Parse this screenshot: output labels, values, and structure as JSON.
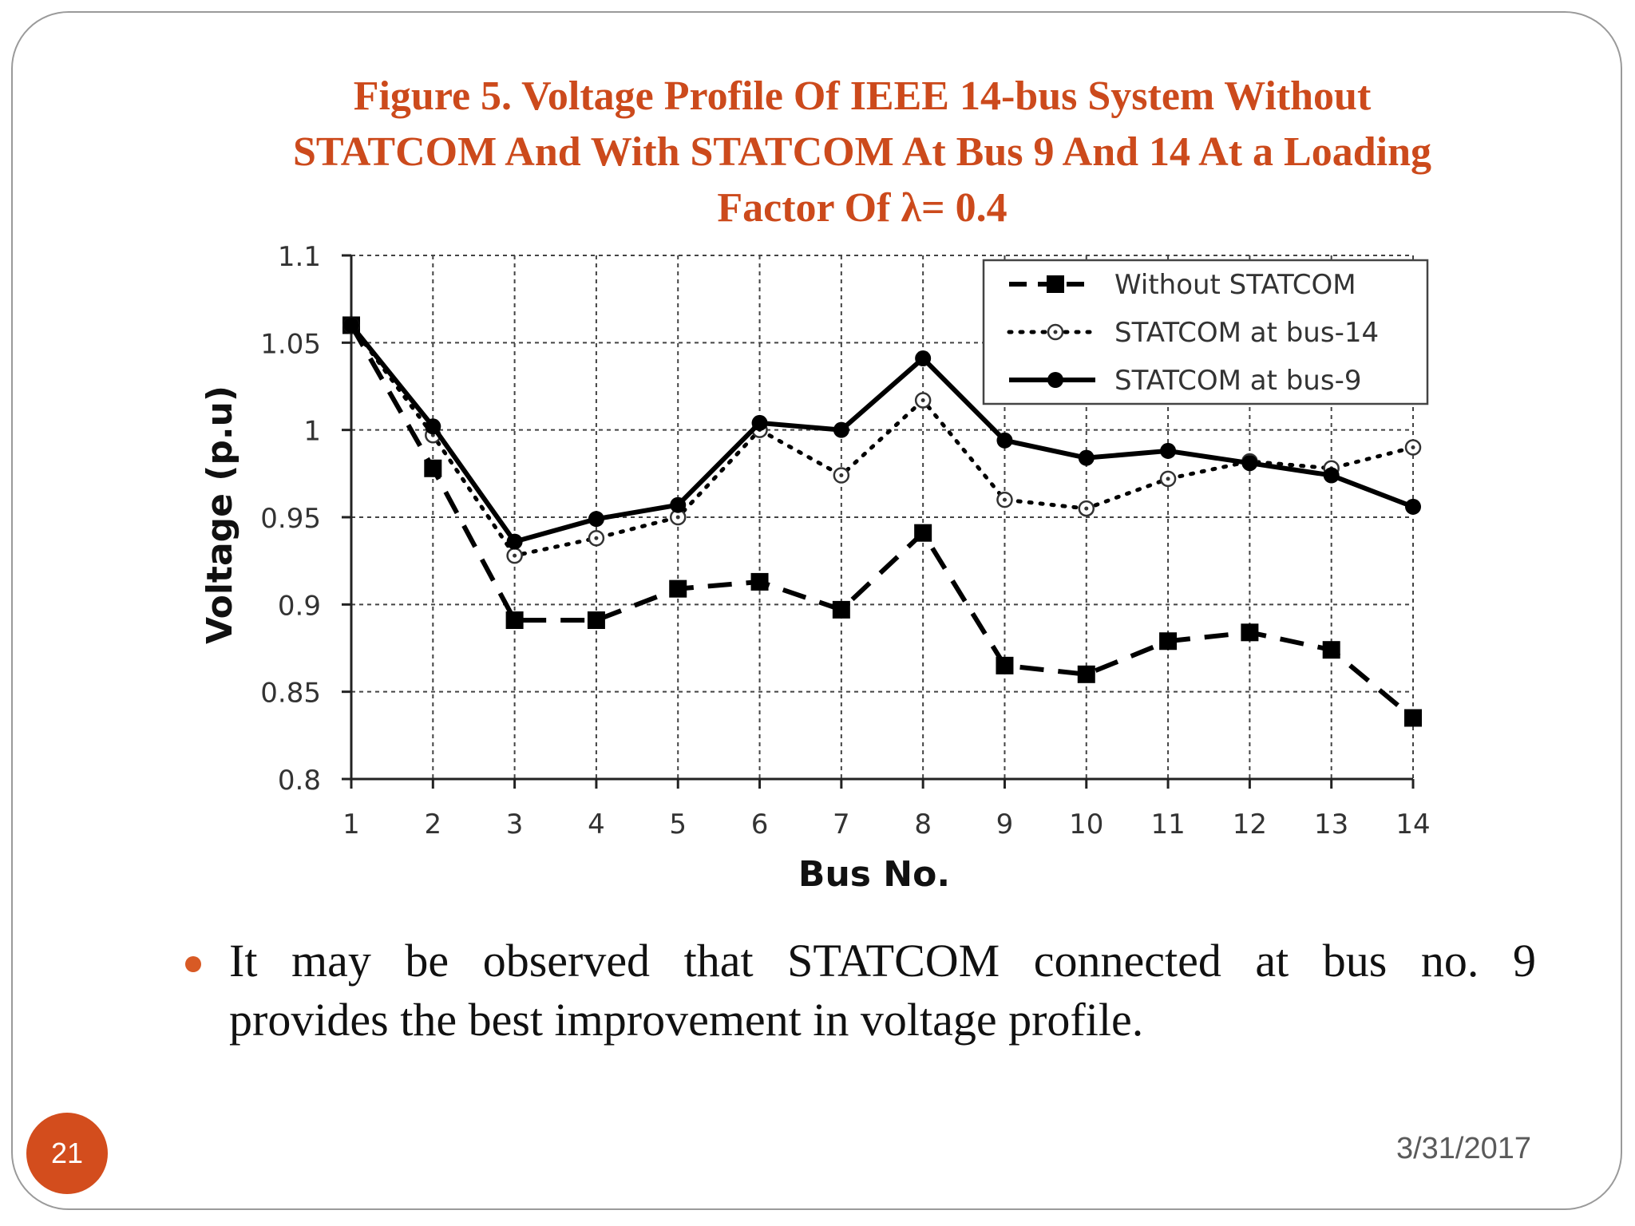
{
  "slide": {
    "title_lines": [
      "Figure 5.  Voltage Profile Of IEEE 14-bus System Without",
      "STATCOM And With STATCOM At Bus 9 And 14 At a Loading",
      "Factor Of  λ= 0.4"
    ],
    "bullet_lines": [
      "It may be observed that STATCOM connected at bus no. 9",
      "provides the best improvement in voltage profile."
    ],
    "page_number": "21",
    "date": "3/31/2017",
    "accent_color": "#cc4a1c",
    "bullet_color": "#d85a25"
  },
  "chart_data": {
    "type": "line",
    "xlabel": "Bus No.",
    "ylabel": "Voltage (p.u)",
    "x": [
      1,
      2,
      3,
      4,
      5,
      6,
      7,
      8,
      9,
      10,
      11,
      12,
      13,
      14
    ],
    "xlim": [
      1,
      14
    ],
    "ylim": [
      0.8,
      1.1
    ],
    "yticks": [
      0.8,
      0.85,
      0.9,
      0.95,
      1,
      1.05,
      1.1
    ],
    "ytick_labels": [
      "0.8",
      "0.85",
      "0.9",
      "0.95",
      "1",
      "1.05",
      "1.1"
    ],
    "xtick_labels": [
      "1",
      "2",
      "3",
      "4",
      "5",
      "6",
      "7",
      "8",
      "9",
      "10",
      "11",
      "12",
      "13",
      "14"
    ],
    "grid": true,
    "legend_position": "top-right",
    "series": [
      {
        "name": "Without STATCOM",
        "style": "dashed",
        "marker": "square",
        "color": "#000000",
        "values": [
          1.06,
          0.978,
          0.891,
          0.891,
          0.909,
          0.913,
          0.897,
          0.941,
          0.865,
          0.86,
          0.879,
          0.884,
          0.874,
          0.835
        ]
      },
      {
        "name": "STATCOM at bus-14",
        "style": "dotted",
        "marker": "open-circle",
        "color": "#000000",
        "values": [
          1.06,
          0.997,
          0.928,
          0.938,
          0.95,
          1.0,
          0.974,
          1.017,
          0.96,
          0.955,
          0.972,
          0.982,
          0.978,
          0.99
        ]
      },
      {
        "name": "STATCOM at bus-9",
        "style": "solid",
        "marker": "filled-circle",
        "color": "#000000",
        "values": [
          1.06,
          1.002,
          0.936,
          0.949,
          0.957,
          1.004,
          1.0,
          1.041,
          0.994,
          0.984,
          0.988,
          0.981,
          0.974,
          0.956
        ]
      }
    ]
  }
}
